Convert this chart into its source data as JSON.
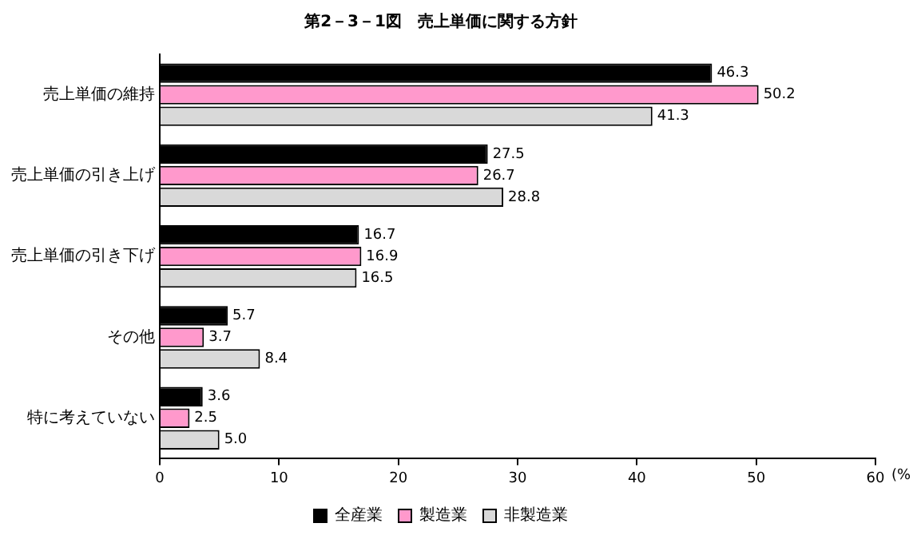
{
  "chart_data": {
    "type": "bar",
    "orientation": "horizontal",
    "title": "第2－3－1図　売上単価に関する方針",
    "xlabel": "(%",
    "categories": [
      "売上単価の維持",
      "売上単価の引き上げ",
      "売上単価の引き下げ",
      "その他",
      "特に考えていない"
    ],
    "series": [
      {
        "name": "全産業",
        "color": "#000000",
        "values": [
          46.3,
          27.5,
          16.7,
          5.7,
          3.6
        ],
        "value_labels": [
          "46.3",
          "27.5",
          "16.7",
          "5.7",
          "3.6"
        ]
      },
      {
        "name": "製造業",
        "color": "#ff99cc",
        "values": [
          50.2,
          26.7,
          16.9,
          3.7,
          2.5
        ],
        "value_labels": [
          "50.2",
          "26.7",
          "16.9",
          "3.7",
          "2.5"
        ]
      },
      {
        "name": "非製造業",
        "color": "#d9d9d9",
        "values": [
          41.3,
          28.8,
          16.5,
          8.4,
          5.0
        ],
        "value_labels": [
          "41.3",
          "28.8",
          "16.5",
          "8.4",
          "5.0"
        ]
      }
    ],
    "xlim": [
      0,
      60
    ],
    "xticks": [
      0,
      10,
      20,
      30,
      40,
      50,
      60
    ],
    "grid": false,
    "legend": "bottom"
  }
}
